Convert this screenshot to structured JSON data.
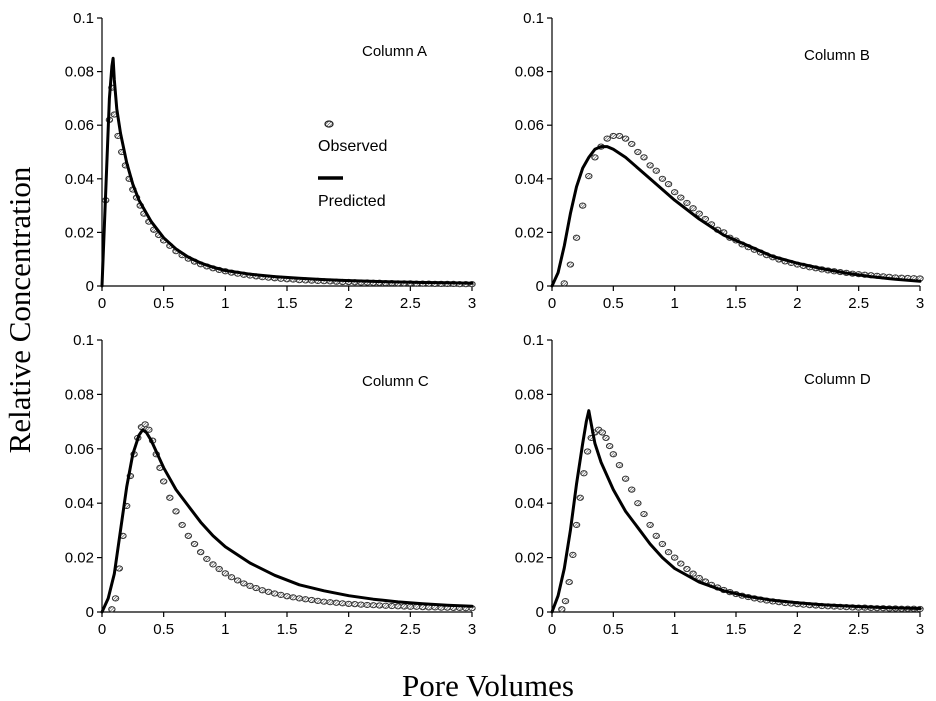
{
  "figure": {
    "ylabel": "Relative Concentration",
    "xlabel": "Pore Volumes"
  },
  "legend": {
    "observed": "Observed",
    "predicted": "Predicted"
  },
  "chart_data": [
    {
      "type": "scatter+line",
      "title": "Column A",
      "xlim": [
        0,
        3
      ],
      "ylim": [
        0,
        0.1
      ],
      "xticks": [
        "0",
        "0.5",
        "1",
        "1.5",
        "2",
        "2.5",
        "3"
      ],
      "yticks": [
        "0",
        "0.02",
        "0.04",
        "0.06",
        "0.08",
        "0.1"
      ],
      "series": [
        {
          "name": "Observed",
          "style": "markers",
          "x": [
            0.03,
            0.06,
            0.08,
            0.1,
            0.13,
            0.16,
            0.19,
            0.22,
            0.25,
            0.28,
            0.31,
            0.34,
            0.38,
            0.42,
            0.46,
            0.5,
            0.55,
            0.6,
            0.65,
            0.7,
            0.75,
            0.8,
            0.85,
            0.9,
            0.95,
            1.0,
            1.05,
            1.1,
            1.15,
            1.2,
            1.25,
            1.3,
            1.35,
            1.4,
            1.45,
            1.5,
            1.55,
            1.6,
            1.65,
            1.7,
            1.75,
            1.8,
            1.85,
            1.9,
            1.95,
            2.0,
            2.05,
            2.1,
            2.15,
            2.2,
            2.25,
            2.3,
            2.35,
            2.4,
            2.45,
            2.5,
            2.55,
            2.6,
            2.65,
            2.7,
            2.75,
            2.8,
            2.85,
            2.9,
            2.95,
            3.0
          ],
          "y": [
            0.032,
            0.062,
            0.074,
            0.064,
            0.056,
            0.05,
            0.045,
            0.04,
            0.036,
            0.033,
            0.03,
            0.027,
            0.024,
            0.021,
            0.019,
            0.017,
            0.015,
            0.013,
            0.0115,
            0.0102,
            0.0091,
            0.0081,
            0.0073,
            0.0066,
            0.006,
            0.0055,
            0.005,
            0.0046,
            0.0042,
            0.0039,
            0.0036,
            0.0033,
            0.0031,
            0.0029,
            0.0027,
            0.0025,
            0.0024,
            0.0022,
            0.0021,
            0.002,
            0.0019,
            0.0018,
            0.0017,
            0.0016,
            0.0015,
            0.0015,
            0.0014,
            0.0013,
            0.0013,
            0.0012,
            0.0012,
            0.0011,
            0.0011,
            0.001,
            0.001,
            0.001,
            0.0009,
            0.0009,
            0.0009,
            0.0008,
            0.0008,
            0.0008,
            0.0008,
            0.0007,
            0.0007,
            0.0007
          ]
        },
        {
          "name": "Predicted",
          "style": "line",
          "x": [
            0.0,
            0.03,
            0.06,
            0.08,
            0.09,
            0.1,
            0.12,
            0.15,
            0.2,
            0.25,
            0.3,
            0.4,
            0.5,
            0.6,
            0.7,
            0.8,
            0.9,
            1.0,
            1.2,
            1.4,
            1.6,
            1.8,
            2.0,
            2.2,
            2.4,
            2.6,
            2.8,
            3.0
          ],
          "y": [
            0.0,
            0.035,
            0.07,
            0.082,
            0.085,
            0.077,
            0.066,
            0.057,
            0.046,
            0.038,
            0.032,
            0.024,
            0.018,
            0.0138,
            0.0108,
            0.0086,
            0.007,
            0.0058,
            0.0044,
            0.0035,
            0.0029,
            0.0024,
            0.002,
            0.0017,
            0.0015,
            0.0013,
            0.0012,
            0.001
          ]
        }
      ]
    },
    {
      "type": "scatter+line",
      "title": "Column B",
      "xlim": [
        0,
        3
      ],
      "ylim": [
        0,
        0.1
      ],
      "xticks": [
        "0",
        "0.5",
        "1",
        "1.5",
        "2",
        "2.5",
        "3"
      ],
      "yticks": [
        "0",
        "0.02",
        "0.04",
        "0.06",
        "0.08",
        "0.1"
      ],
      "series": [
        {
          "name": "Observed",
          "style": "markers",
          "x": [
            0.1,
            0.15,
            0.2,
            0.25,
            0.3,
            0.35,
            0.4,
            0.45,
            0.5,
            0.55,
            0.6,
            0.65,
            0.7,
            0.75,
            0.8,
            0.85,
            0.9,
            0.95,
            1.0,
            1.05,
            1.1,
            1.15,
            1.2,
            1.25,
            1.3,
            1.35,
            1.4,
            1.45,
            1.5,
            1.55,
            1.6,
            1.65,
            1.7,
            1.75,
            1.8,
            1.85,
            1.9,
            1.95,
            2.0,
            2.05,
            2.1,
            2.15,
            2.2,
            2.25,
            2.3,
            2.35,
            2.4,
            2.45,
            2.5,
            2.55,
            2.6,
            2.65,
            2.7,
            2.75,
            2.8,
            2.85,
            2.9,
            2.95,
            3.0
          ],
          "y": [
            0.001,
            0.008,
            0.018,
            0.03,
            0.041,
            0.048,
            0.052,
            0.055,
            0.056,
            0.056,
            0.055,
            0.053,
            0.05,
            0.048,
            0.045,
            0.043,
            0.04,
            0.038,
            0.035,
            0.033,
            0.031,
            0.029,
            0.027,
            0.025,
            0.023,
            0.021,
            0.02,
            0.018,
            0.017,
            0.0155,
            0.0145,
            0.0135,
            0.0125,
            0.0115,
            0.0107,
            0.0099,
            0.0092,
            0.0086,
            0.008,
            0.0075,
            0.007,
            0.0066,
            0.0062,
            0.0058,
            0.0055,
            0.0052,
            0.0049,
            0.0046,
            0.0044,
            0.0042,
            0.004,
            0.0038,
            0.0036,
            0.0034,
            0.0032,
            0.0031,
            0.003,
            0.0029,
            0.0028
          ]
        },
        {
          "name": "Predicted",
          "style": "line",
          "x": [
            0.0,
            0.05,
            0.1,
            0.15,
            0.2,
            0.25,
            0.3,
            0.35,
            0.4,
            0.45,
            0.5,
            0.6,
            0.7,
            0.8,
            0.9,
            1.0,
            1.2,
            1.4,
            1.6,
            1.8,
            2.0,
            2.2,
            2.4,
            2.6,
            2.8,
            3.0
          ],
          "y": [
            0.0,
            0.005,
            0.015,
            0.027,
            0.037,
            0.044,
            0.048,
            0.051,
            0.052,
            0.052,
            0.051,
            0.048,
            0.044,
            0.04,
            0.036,
            0.032,
            0.025,
            0.019,
            0.015,
            0.011,
            0.0085,
            0.0065,
            0.0048,
            0.0035,
            0.0025,
            0.0018
          ]
        }
      ]
    },
    {
      "type": "scatter+line",
      "title": "Column C",
      "xlim": [
        0,
        3
      ],
      "ylim": [
        0,
        0.1
      ],
      "xticks": [
        "0",
        "0.5",
        "1",
        "1.5",
        "2",
        "2.5",
        "3"
      ],
      "yticks": [
        "0",
        "0.02",
        "0.04",
        "0.06",
        "0.08",
        "0.1"
      ],
      "series": [
        {
          "name": "Observed",
          "style": "markers",
          "x": [
            0.08,
            0.11,
            0.14,
            0.17,
            0.2,
            0.23,
            0.26,
            0.29,
            0.32,
            0.35,
            0.38,
            0.41,
            0.44,
            0.47,
            0.5,
            0.55,
            0.6,
            0.65,
            0.7,
            0.75,
            0.8,
            0.85,
            0.9,
            0.95,
            1.0,
            1.05,
            1.1,
            1.15,
            1.2,
            1.25,
            1.3,
            1.35,
            1.4,
            1.45,
            1.5,
            1.55,
            1.6,
            1.65,
            1.7,
            1.75,
            1.8,
            1.85,
            1.9,
            1.95,
            2.0,
            2.05,
            2.1,
            2.15,
            2.2,
            2.25,
            2.3,
            2.35,
            2.4,
            2.45,
            2.5,
            2.55,
            2.6,
            2.65,
            2.7,
            2.75,
            2.8,
            2.85,
            2.9,
            2.95,
            3.0
          ],
          "y": [
            0.001,
            0.005,
            0.016,
            0.028,
            0.039,
            0.05,
            0.058,
            0.064,
            0.068,
            0.069,
            0.067,
            0.063,
            0.058,
            0.053,
            0.048,
            0.042,
            0.037,
            0.032,
            0.028,
            0.025,
            0.022,
            0.0195,
            0.0175,
            0.0158,
            0.0142,
            0.0128,
            0.0116,
            0.0105,
            0.0096,
            0.0088,
            0.008,
            0.0074,
            0.0068,
            0.0063,
            0.0058,
            0.0054,
            0.005,
            0.0047,
            0.0044,
            0.0041,
            0.0038,
            0.0036,
            0.0034,
            0.0032,
            0.003,
            0.0029,
            0.0027,
            0.0026,
            0.0025,
            0.0024,
            0.0023,
            0.0022,
            0.0021,
            0.002,
            0.0019,
            0.0019,
            0.0018,
            0.0017,
            0.0017,
            0.0016,
            0.0016,
            0.0015,
            0.0015,
            0.0014,
            0.0014
          ]
        },
        {
          "name": "Predicted",
          "style": "line",
          "x": [
            0.0,
            0.05,
            0.1,
            0.15,
            0.2,
            0.25,
            0.3,
            0.33,
            0.36,
            0.4,
            0.45,
            0.5,
            0.6,
            0.7,
            0.8,
            0.9,
            1.0,
            1.2,
            1.4,
            1.6,
            1.8,
            2.0,
            2.2,
            2.4,
            2.6,
            2.8,
            3.0
          ],
          "y": [
            0.0,
            0.005,
            0.014,
            0.03,
            0.046,
            0.058,
            0.065,
            0.067,
            0.066,
            0.063,
            0.058,
            0.053,
            0.045,
            0.039,
            0.033,
            0.028,
            0.024,
            0.018,
            0.0135,
            0.01,
            0.0078,
            0.006,
            0.0047,
            0.0037,
            0.003,
            0.0025,
            0.0021
          ]
        }
      ]
    },
    {
      "type": "scatter+line",
      "title": "Column D",
      "xlim": [
        0,
        3
      ],
      "ylim": [
        0,
        0.1
      ],
      "xticks": [
        "0",
        "0.5",
        "1",
        "1.5",
        "2",
        "2.5",
        "3"
      ],
      "yticks": [
        "0",
        "0.02",
        "0.04",
        "0.06",
        "0.08",
        "0.1"
      ],
      "series": [
        {
          "name": "Observed",
          "style": "markers",
          "x": [
            0.08,
            0.11,
            0.14,
            0.17,
            0.2,
            0.23,
            0.26,
            0.29,
            0.32,
            0.35,
            0.38,
            0.41,
            0.44,
            0.47,
            0.5,
            0.55,
            0.6,
            0.65,
            0.7,
            0.75,
            0.8,
            0.85,
            0.9,
            0.95,
            1.0,
            1.05,
            1.1,
            1.15,
            1.2,
            1.25,
            1.3,
            1.35,
            1.4,
            1.45,
            1.5,
            1.55,
            1.6,
            1.65,
            1.7,
            1.75,
            1.8,
            1.85,
            1.9,
            1.95,
            2.0,
            2.05,
            2.1,
            2.15,
            2.2,
            2.25,
            2.3,
            2.35,
            2.4,
            2.45,
            2.5,
            2.55,
            2.6,
            2.65,
            2.7,
            2.75,
            2.8,
            2.85,
            2.9,
            2.95,
            3.0
          ],
          "y": [
            0.001,
            0.004,
            0.011,
            0.021,
            0.032,
            0.042,
            0.051,
            0.059,
            0.064,
            0.066,
            0.067,
            0.066,
            0.064,
            0.061,
            0.058,
            0.054,
            0.049,
            0.045,
            0.04,
            0.036,
            0.032,
            0.028,
            0.025,
            0.022,
            0.02,
            0.0178,
            0.0158,
            0.0141,
            0.0125,
            0.0112,
            0.01,
            0.009,
            0.0081,
            0.0073,
            0.0066,
            0.006,
            0.0055,
            0.005,
            0.0046,
            0.0042,
            0.0039,
            0.0036,
            0.0033,
            0.0031,
            0.0029,
            0.0027,
            0.0025,
            0.0024,
            0.0022,
            0.0021,
            0.002,
            0.0019,
            0.0018,
            0.0017,
            0.0016,
            0.0016,
            0.0015,
            0.0014,
            0.0014,
            0.0013,
            0.0013,
            0.0012,
            0.0012,
            0.0012,
            0.0011
          ]
        },
        {
          "name": "Predicted",
          "style": "line",
          "x": [
            0.0,
            0.05,
            0.1,
            0.15,
            0.2,
            0.25,
            0.28,
            0.3,
            0.32,
            0.35,
            0.4,
            0.5,
            0.6,
            0.7,
            0.8,
            0.9,
            1.0,
            1.2,
            1.4,
            1.6,
            1.8,
            2.0,
            2.2,
            2.4,
            2.6,
            2.8,
            3.0
          ],
          "y": [
            0.0,
            0.006,
            0.016,
            0.03,
            0.047,
            0.062,
            0.07,
            0.074,
            0.069,
            0.062,
            0.055,
            0.045,
            0.037,
            0.031,
            0.025,
            0.02,
            0.016,
            0.011,
            0.0078,
            0.0057,
            0.0043,
            0.0034,
            0.0027,
            0.0022,
            0.0018,
            0.0015,
            0.0013
          ]
        }
      ]
    }
  ]
}
